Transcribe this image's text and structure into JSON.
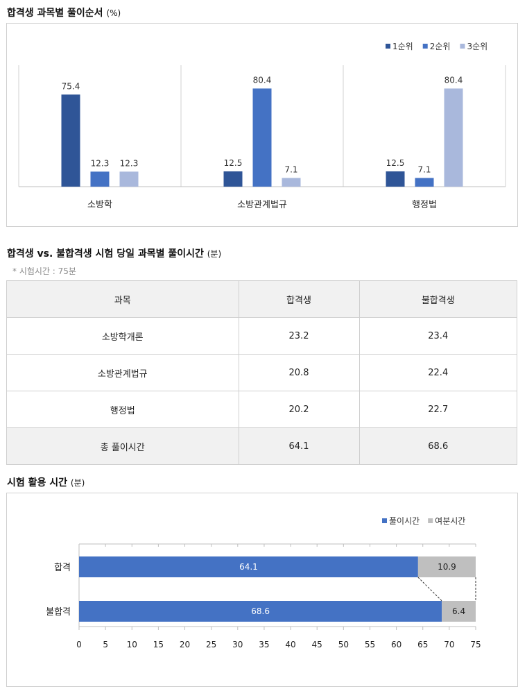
{
  "chart1": {
    "title": "합격생 과목별 풀이순서",
    "unit": "(%)"
  },
  "table": {
    "title": "합격생 vs. 불합격생 시험 당일 과목별 풀이시간",
    "unit": "(분)",
    "note": "* 시험시간 : 75분",
    "headers": [
      "과목",
      "합격생",
      "불합격생"
    ],
    "rows": [
      [
        "소방학개론",
        "23.2",
        "23.4"
      ],
      [
        "소방관계법규",
        "20.8",
        "22.4"
      ],
      [
        "행정법",
        "20.2",
        "22.7"
      ],
      [
        "총 풀이시간",
        "64.1",
        "68.6"
      ]
    ]
  },
  "chart2": {
    "title": "시험 활용 시간",
    "unit": "(분)"
  },
  "chart_data": [
    {
      "type": "bar",
      "title": "합격생 과목별 풀이순서 (%)",
      "categories": [
        "소방학",
        "소방관계법규",
        "행정법"
      ],
      "series": [
        {
          "name": "1순위",
          "values": [
            75.4,
            12.5,
            12.5
          ],
          "color": "#2f5597"
        },
        {
          "name": "2순위",
          "values": [
            12.3,
            80.4,
            7.1
          ],
          "color": "#4472c4"
        },
        {
          "name": "3순위",
          "values": [
            12.3,
            7.1,
            80.4
          ],
          "color": "#a9b8dc"
        }
      ],
      "ylim": [
        0,
        100
      ],
      "legend": "top-right",
      "grid": false
    },
    {
      "type": "bar",
      "orientation": "horizontal",
      "stacked": true,
      "title": "시험 활용 시간 (분)",
      "categories": [
        "합격",
        "불합격"
      ],
      "series": [
        {
          "name": "풀이시간",
          "values": [
            64.1,
            68.6
          ],
          "color": "#4472c4"
        },
        {
          "name": "여분시간",
          "values": [
            10.9,
            6.4
          ],
          "color": "#bfbfbf"
        }
      ],
      "xlim": [
        0,
        75
      ],
      "xticks": [
        0,
        5,
        10,
        15,
        20,
        25,
        30,
        35,
        40,
        45,
        50,
        55,
        60,
        65,
        70,
        75
      ],
      "legend": "top-right",
      "grid": false
    }
  ]
}
